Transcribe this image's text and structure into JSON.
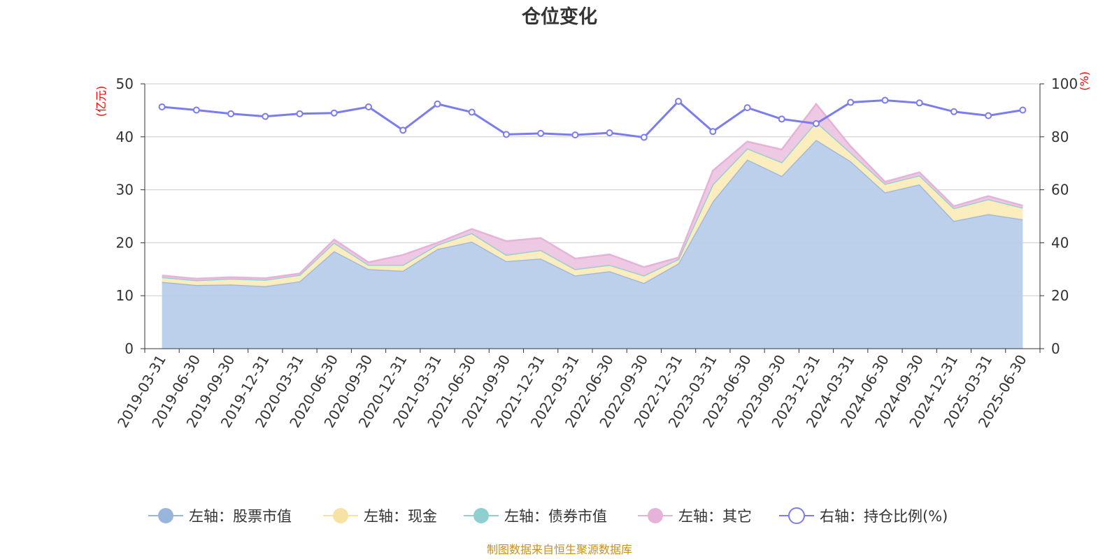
{
  "chart_data": {
    "type": "area",
    "title": "仓位变化",
    "source": "制图数据来自恒生聚源数据库",
    "left_axis": {
      "unit": "(亿元)",
      "min": 0,
      "max": 50,
      "ticks": [
        "0",
        "10",
        "20",
        "30",
        "40",
        "50"
      ]
    },
    "right_axis": {
      "unit": "(%)",
      "min": 0,
      "max": 100,
      "ticks": [
        "0",
        "20",
        "40",
        "60",
        "80",
        "100"
      ]
    },
    "grid": true,
    "legend_position": "bottom",
    "categories": [
      "2019-03-31",
      "2019-06-30",
      "2019-09-30",
      "2019-12-31",
      "2020-03-31",
      "2020-06-30",
      "2020-09-30",
      "2020-12-31",
      "2021-03-31",
      "2021-06-30",
      "2021-09-30",
      "2021-12-31",
      "2022-03-31",
      "2022-06-30",
      "2022-09-30",
      "2022-12-31",
      "2023-03-31",
      "2023-06-30",
      "2023-09-30",
      "2023-12-31",
      "2024-03-31",
      "2024-06-30",
      "2024-09-30",
      "2024-12-31",
      "2025-03-31",
      "2025-06-30"
    ],
    "series": [
      {
        "name": "左轴：股票市值",
        "axis": "left",
        "kind": "stacked-area",
        "color": "#9ab5dc",
        "fill": "#b8cdeb",
        "values": [
          12.6,
          12.0,
          12.1,
          11.8,
          12.7,
          18.4,
          15.0,
          14.7,
          18.8,
          20.2,
          16.5,
          17.0,
          13.8,
          14.6,
          12.4,
          16.1,
          27.8,
          35.7,
          32.6,
          39.4,
          35.4,
          29.5,
          31.0,
          24.1,
          25.4,
          24.4
        ]
      },
      {
        "name": "左轴：现金",
        "axis": "left",
        "kind": "stacked-area",
        "color": "#f6e3a4",
        "fill": "#fbecb9",
        "values": [
          0.9,
          0.9,
          1.1,
          1.2,
          1.2,
          1.6,
          0.8,
          1.1,
          0.8,
          1.6,
          1.2,
          1.6,
          1.2,
          1.2,
          1.4,
          0.8,
          3.2,
          2.1,
          2.6,
          3.4,
          1.6,
          1.6,
          1.7,
          2.4,
          2.8,
          2.2
        ]
      },
      {
        "name": "左轴：债券市值",
        "axis": "left",
        "kind": "stacked-area",
        "color": "#8fcfd0",
        "fill": "#a7dcdc",
        "values": [
          0,
          0,
          0,
          0,
          0,
          0,
          0,
          0,
          0,
          0,
          0,
          0,
          0,
          0,
          0,
          0,
          0,
          0,
          0,
          0,
          0,
          0,
          0,
          0,
          0,
          0
        ]
      },
      {
        "name": "左轴：其它",
        "axis": "left",
        "kind": "stacked-area",
        "color": "#e6b2d9",
        "fill": "#edc6e3",
        "values": [
          0.3,
          0.3,
          0.3,
          0.3,
          0.3,
          0.6,
          0.5,
          1.9,
          0.4,
          0.8,
          2.6,
          2.3,
          2.0,
          2.0,
          1.6,
          0.3,
          2.6,
          1.3,
          2.4,
          3.4,
          1.2,
          0.4,
          0.6,
          0.4,
          0.6,
          0.4
        ]
      },
      {
        "name": "右轴：持仓比例(%)",
        "axis": "right",
        "kind": "line",
        "color": "#7b7cf0",
        "values": [
          91.3,
          90.1,
          88.7,
          87.7,
          88.7,
          89.0,
          91.3,
          82.5,
          92.4,
          89.3,
          80.9,
          81.3,
          80.7,
          81.5,
          79.8,
          93.4,
          82.0,
          91.0,
          86.7,
          85.0,
          93.0,
          93.8,
          92.8,
          89.5,
          88.0,
          90.1
        ]
      }
    ]
  }
}
